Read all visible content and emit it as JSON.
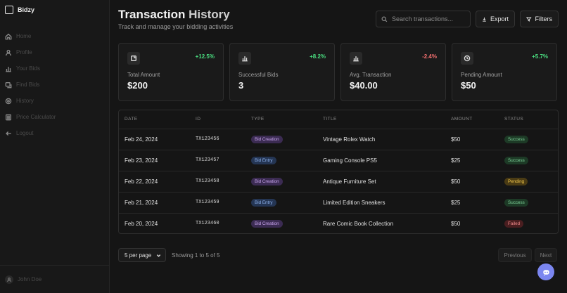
{
  "app": {
    "name": "Bidzy"
  },
  "sidebar": {
    "items": [
      {
        "label": "Home",
        "icon": "home-icon"
      },
      {
        "label": "Profile",
        "icon": "user-icon"
      },
      {
        "label": "Your Bids",
        "icon": "bar-chart-icon"
      },
      {
        "label": "Find Bids",
        "icon": "find-icon"
      },
      {
        "label": "History",
        "icon": "history-icon"
      },
      {
        "label": "Price Calculator",
        "icon": "calculator-icon"
      },
      {
        "label": "Logout",
        "icon": "logout-icon"
      }
    ],
    "user": "John Doe"
  },
  "header": {
    "title_main": "Transaction",
    "title_rest": " History",
    "subtitle": "Track and manage your bidding activities",
    "search_placeholder": "Search transactions...",
    "export_label": "Export",
    "filters_label": "Filters"
  },
  "stats": [
    {
      "label": "Total Amount",
      "value": "$200",
      "change": "+12.5%",
      "change_color": "#4ade80",
      "icon": "receipt-icon"
    },
    {
      "label": "Successful Bids",
      "value": "3",
      "change": "+8.2%",
      "change_color": "#4ade80",
      "icon": "bar-chart-icon"
    },
    {
      "label": "Avg. Transaction",
      "value": "$40.00",
      "change": "-2.4%",
      "change_color": "#f87171",
      "icon": "bar-chart-icon"
    },
    {
      "label": "Pending Amount",
      "value": "$50",
      "change": "+5.7%",
      "change_color": "#4ade80",
      "icon": "clock-icon"
    }
  ],
  "table": {
    "headers": [
      "DATE",
      "ID",
      "TYPE",
      "TITLE",
      "AMOUNT",
      "STATUS"
    ],
    "rows": [
      {
        "date": "Feb 24, 2024",
        "id": "TX123456",
        "type": "Bid Creation",
        "title": "Vintage Rolex Watch",
        "amount": "$50",
        "status": "Success"
      },
      {
        "date": "Feb 23, 2024",
        "id": "TX123457",
        "type": "Bid Entry",
        "title": "Gaming Console PS5",
        "amount": "$25",
        "status": "Success"
      },
      {
        "date": "Feb 22, 2024",
        "id": "TX123458",
        "type": "Bid Creation",
        "title": "Antique Furniture Set",
        "amount": "$50",
        "status": "Pending"
      },
      {
        "date": "Feb 21, 2024",
        "id": "TX123459",
        "type": "Bid Entry",
        "title": "Limited Edition Sneakers",
        "amount": "$25",
        "status": "Success"
      },
      {
        "date": "Feb 20, 2024",
        "id": "TX123460",
        "type": "Bid Creation",
        "title": "Rare Comic Book Collection",
        "amount": "$50",
        "status": "Failed"
      }
    ]
  },
  "pagination": {
    "per_page": "5 per page",
    "showing": "Showing 1 to 5 of 5",
    "previous": "Previous",
    "next": "Next"
  },
  "colors": {
    "background": "#151515",
    "accent": "#7b86f0",
    "positive": "#4ade80",
    "negative": "#f87171"
  }
}
